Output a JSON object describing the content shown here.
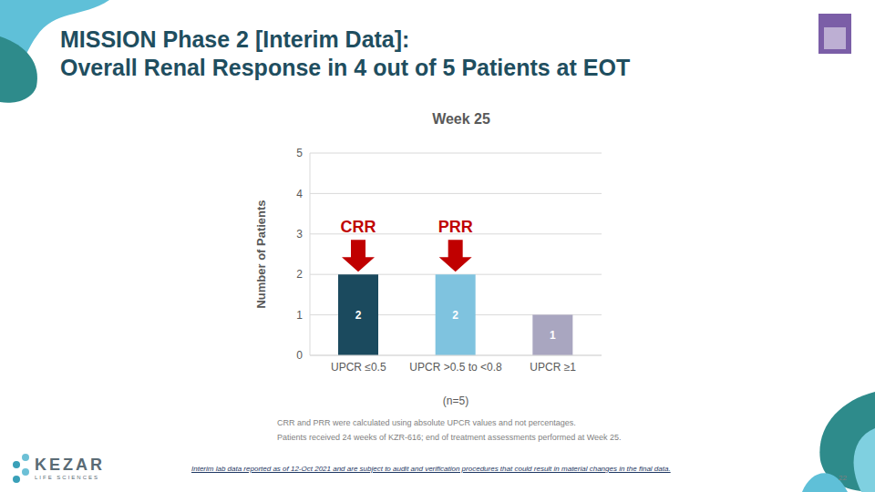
{
  "slide": {
    "title": [
      "MISSION Phase 2 [Interim Data]:",
      "Overall Renal Response in 4 out of 5 Patients at EOT"
    ],
    "footnotes": [
      "CRR and PRR were calculated using absolute UPCR values and not percentages.",
      "Patients received 24 weeks of KZR-616; end of treatment assessments performed at Week 25."
    ],
    "disclaimer": "Interim lab data reported as of 12-Oct 2021 and are subject to audit and verification procedures that could result in material changes in the final data.",
    "logo": {
      "name": "KEZAR",
      "tagline": "LIFE SCIENCES"
    },
    "page_number": 22
  },
  "chart_data": {
    "type": "bar",
    "title": "Week 25",
    "categories": [
      "UPCR ≤0.5",
      "UPCR >0.5 to <0.8",
      "UPCR ≥1"
    ],
    "values": [
      2,
      2,
      1
    ],
    "colors": [
      "#1b4a5e",
      "#7fc3df",
      "#a9a6c0"
    ],
    "ylim": [
      0,
      5
    ],
    "yticks": [
      0,
      1,
      2,
      3,
      4,
      5
    ],
    "grid": true,
    "data_labels": true,
    "ylabel": "Number of Patients",
    "xlabel": "(n=5)",
    "annotations": [
      {
        "text": "CRR",
        "category": "UPCR ≤0.5"
      },
      {
        "text": "PRR",
        "category": "UPCR >0.5 to <0.8"
      }
    ]
  }
}
